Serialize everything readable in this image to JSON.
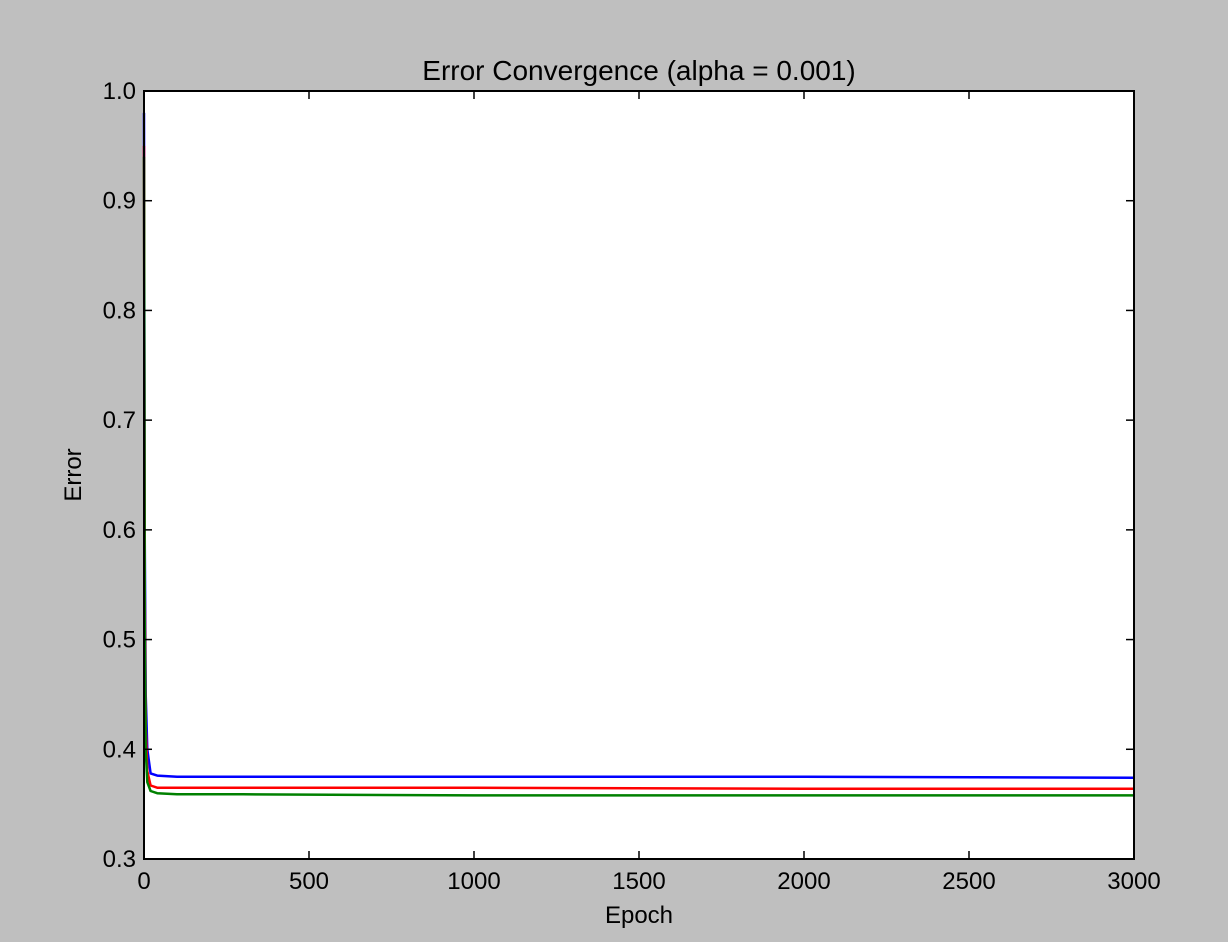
{
  "chart_data": {
    "type": "line",
    "title": "Error Convergence (alpha = 0.001)",
    "xlabel": "Epoch",
    "ylabel": "Error",
    "xlim": [
      0,
      3000
    ],
    "ylim": [
      0.3,
      1.0
    ],
    "xticks": [
      0,
      500,
      1000,
      1500,
      2000,
      2500,
      3000
    ],
    "yticks": [
      0.3,
      0.4,
      0.5,
      0.6,
      0.7,
      0.8,
      0.9,
      1.0
    ],
    "xtick_labels": [
      "0",
      "500",
      "1000",
      "1500",
      "2000",
      "2500",
      "3000"
    ],
    "ytick_labels": [
      "0.3",
      "0.4",
      "0.5",
      "0.6",
      "0.7",
      "0.8",
      "0.9",
      "1.0"
    ],
    "grid": false,
    "legend": "none",
    "background": "#bfbfbf",
    "plot_background": "#ffffff",
    "series": [
      {
        "color": "#0000ff",
        "x": [
          0,
          2,
          5,
          10,
          20,
          40,
          100,
          300,
          1000,
          2000,
          3000
        ],
        "y": [
          0.98,
          0.6,
          0.45,
          0.4,
          0.378,
          0.376,
          0.375,
          0.375,
          0.375,
          0.375,
          0.374
        ]
      },
      {
        "color": "#ff0000",
        "x": [
          0,
          2,
          5,
          10,
          20,
          40,
          100,
          300,
          1000,
          2000,
          3000
        ],
        "y": [
          0.95,
          0.55,
          0.42,
          0.38,
          0.367,
          0.365,
          0.365,
          0.365,
          0.365,
          0.364,
          0.364
        ]
      },
      {
        "color": "#008000",
        "x": [
          0,
          2,
          5,
          10,
          20,
          40,
          100,
          300,
          1000,
          2000,
          3000
        ],
        "y": [
          0.94,
          0.52,
          0.4,
          0.37,
          0.362,
          0.36,
          0.359,
          0.359,
          0.358,
          0.358,
          0.358
        ]
      }
    ]
  }
}
